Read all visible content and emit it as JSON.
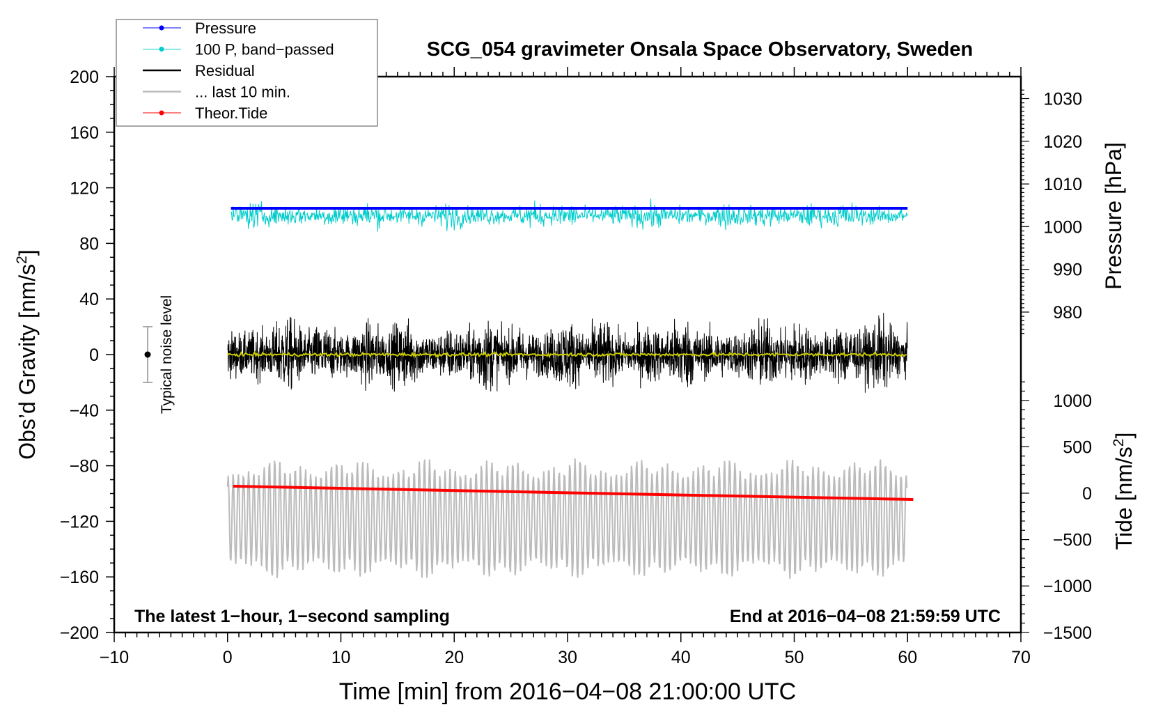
{
  "chart_data": {
    "type": "line",
    "title": "SCG_054 gravimeter Onsala Space Observatory, Sweden",
    "xlabel": "Time [min] from 2016−04−08 21:00:00 UTC",
    "ylabel": "Obs’d Gravity [nm/s",
    "ylabel_sup": "2",
    "ylabel_end": "]",
    "y2label": "Pressure [hPa]",
    "y3label": "Tide [nm/s",
    "y3label_sup": "2",
    "y3label_end": "]",
    "xlim": [
      -10,
      70
    ],
    "ylim": [
      -200,
      200
    ],
    "pressure_lim": [
      980,
      1030
    ],
    "tide_lim": [
      -1500,
      1000
    ],
    "x_ticks": [
      "−10",
      "0",
      "10",
      "20",
      "30",
      "40",
      "50",
      "60",
      "70"
    ],
    "y_ticks": [
      "200",
      "160",
      "120",
      "80",
      "40",
      "0",
      "−40",
      "−80",
      "−120",
      "−160",
      "−200"
    ],
    "pressure_ticks": [
      "1030",
      "1020",
      "1010",
      "1000",
      "990",
      "980"
    ],
    "tide_ticks": [
      "1000",
      "500",
      "0",
      "−500",
      "−1000",
      "−1500"
    ],
    "legend": {
      "placement": "top-left",
      "entries": [
        {
          "label": "Pressure",
          "color": "#0000ff",
          "marker": true
        },
        {
          "label": "100 P, band−passed",
          "color": "#00cccc",
          "marker": true
        },
        {
          "label": "Residual",
          "color": "#000000",
          "marker": false
        },
        {
          "label": "... last 10 min.",
          "color": "#bbbbbb",
          "marker": false
        },
        {
          "label": "Theor.Tide",
          "color": "#ff0000",
          "marker": true
        }
      ]
    },
    "series": [
      {
        "name": "Pressure",
        "axis": "pressure",
        "x_range": [
          0.3,
          60
        ],
        "value_hPa": 1004.3
      },
      {
        "name": "100 P, band-passed",
        "axis": "gravity",
        "x_range": [
          0.3,
          60
        ],
        "center": 100,
        "range": [
          75,
          120
        ]
      },
      {
        "name": "Residual",
        "axis": "gravity",
        "x_range": [
          0,
          60
        ],
        "center": 0,
        "range": [
          -57,
          53
        ]
      },
      {
        "name": "Residual smoothed",
        "axis": "gravity",
        "color": "#cccc00",
        "center": 0
      },
      {
        "name": "... last 10 min.",
        "axis": "gravity",
        "x_range": [
          0,
          60
        ],
        "center": -118,
        "range": [
          -165,
          -85
        ]
      },
      {
        "name": "Theor.Tide",
        "axis": "tide",
        "x_range": [
          0.5,
          60.5
        ],
        "start": 75,
        "end": -68
      }
    ],
    "noise_bar": {
      "label": "Typical noise level",
      "x": -7,
      "center": 0,
      "half_width": 20
    },
    "annotations": {
      "left": "The latest 1−hour, 1−second sampling",
      "right": "End at 2016−04−08 21:59:59 UTC"
    }
  }
}
